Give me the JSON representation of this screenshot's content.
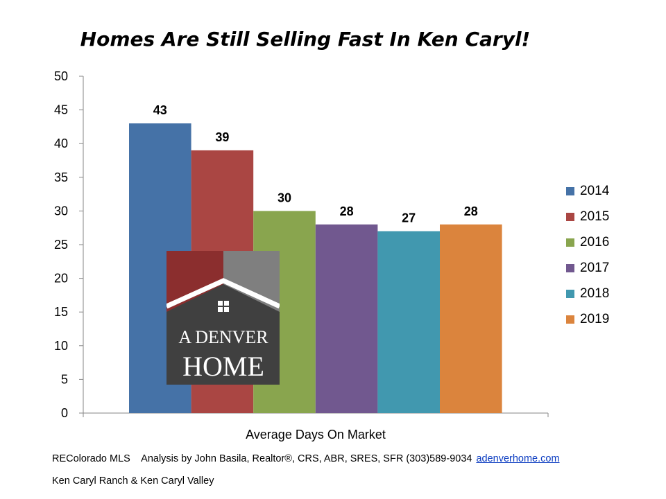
{
  "title": "Homes Are Still Selling Fast In Ken Caryl!",
  "chart_data": {
    "type": "bar",
    "categories": [
      "Average Days On Market"
    ],
    "series": [
      {
        "name": "2014",
        "values": [
          43
        ],
        "color": "#4572a7"
      },
      {
        "name": "2015",
        "values": [
          39
        ],
        "color": "#aa4643"
      },
      {
        "name": "2016",
        "values": [
          30
        ],
        "color": "#89a54e"
      },
      {
        "name": "2017",
        "values": [
          28
        ],
        "color": "#71588f"
      },
      {
        "name": "2018",
        "values": [
          27
        ],
        "color": "#4198af"
      },
      {
        "name": "2019",
        "values": [
          28
        ],
        "color": "#db843d"
      }
    ],
    "xlabel": "Average Days On Market",
    "ylabel": "",
    "ylim": [
      0,
      50
    ],
    "yticks": [
      0,
      5,
      10,
      15,
      20,
      25,
      30,
      35,
      40,
      45,
      50
    ],
    "grid": false,
    "legend": "right",
    "data_labels": true
  },
  "logo": {
    "line1": "A DENVER",
    "line2": "HOME",
    "colors": {
      "red": "#8b2e2e",
      "gray": "#7f7f7f",
      "dark": "#404040"
    }
  },
  "footer": {
    "line1_text": "REColorado MLS    Analysis by John Basila, Realtor®, CRS, ABR, SRES, SFR (303)589-9034",
    "link_text": "adenverhome.com",
    "line2_text": "Ken Caryl Ranch & Ken Caryl Valley"
  }
}
